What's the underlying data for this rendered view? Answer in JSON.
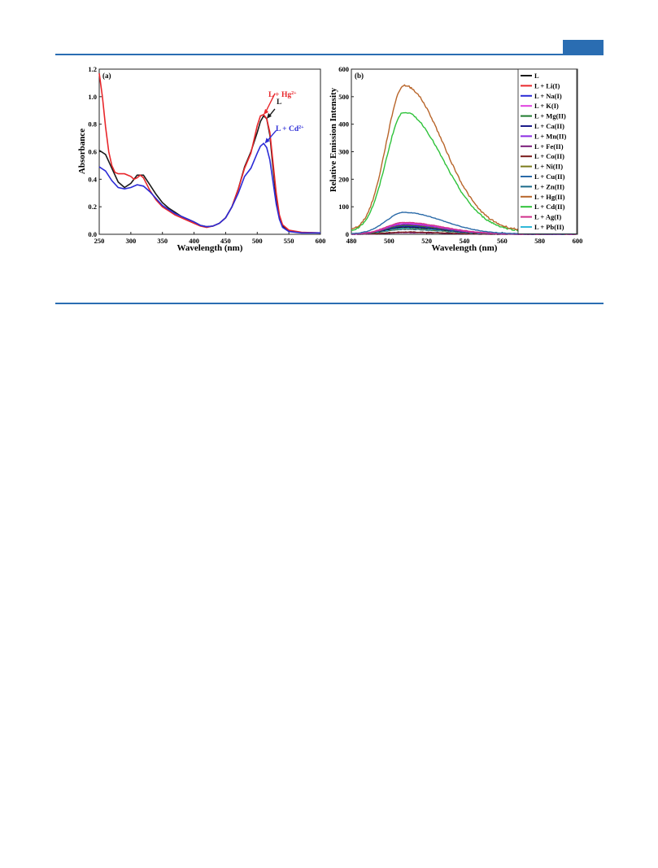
{
  "chart_data": [
    {
      "type": "line",
      "panel_label": "(a)",
      "xlabel": "Wavelength (nm)",
      "ylabel": "Absorbance",
      "xlim": [
        250,
        600
      ],
      "ylim": [
        0.0,
        1.2
      ],
      "xticks": [
        250,
        300,
        350,
        400,
        450,
        500,
        550,
        600
      ],
      "yticks": [
        0.0,
        0.2,
        0.4,
        0.6,
        0.8,
        1.0,
        1.2
      ],
      "ytick_labels": [
        "0.0",
        "0.2",
        "0.4",
        "0.6",
        "0.8",
        "1.0",
        "1.2"
      ],
      "grid": false,
      "series": [
        {
          "name": "L",
          "color": "#1a1a1a",
          "points": [
            [
              250,
              0.61
            ],
            [
              260,
              0.58
            ],
            [
              270,
              0.48
            ],
            [
              280,
              0.38
            ],
            [
              290,
              0.34
            ],
            [
              300,
              0.37
            ],
            [
              310,
              0.43
            ],
            [
              320,
              0.43
            ],
            [
              330,
              0.36
            ],
            [
              340,
              0.29
            ],
            [
              350,
              0.23
            ],
            [
              360,
              0.19
            ],
            [
              370,
              0.16
            ],
            [
              380,
              0.13
            ],
            [
              390,
              0.11
            ],
            [
              400,
              0.09
            ],
            [
              410,
              0.065
            ],
            [
              420,
              0.055
            ],
            [
              430,
              0.06
            ],
            [
              440,
              0.08
            ],
            [
              450,
              0.12
            ],
            [
              460,
              0.2
            ],
            [
              470,
              0.33
            ],
            [
              480,
              0.49
            ],
            [
              490,
              0.6
            ],
            [
              500,
              0.74
            ],
            [
              505,
              0.82
            ],
            [
              510,
              0.86
            ],
            [
              515,
              0.84
            ],
            [
              520,
              0.72
            ],
            [
              525,
              0.48
            ],
            [
              530,
              0.26
            ],
            [
              535,
              0.12
            ],
            [
              540,
              0.06
            ],
            [
              550,
              0.025
            ],
            [
              570,
              0.012
            ],
            [
              600,
              0.01
            ]
          ]
        },
        {
          "name": "L + Hg",
          "color": "#e8272b",
          "points": [
            [
              250,
              1.17
            ],
            [
              255,
              1.0
            ],
            [
              260,
              0.78
            ],
            [
              265,
              0.6
            ],
            [
              270,
              0.5
            ],
            [
              275,
              0.45
            ],
            [
              280,
              0.44
            ],
            [
              290,
              0.44
            ],
            [
              300,
              0.42
            ],
            [
              305,
              0.4
            ],
            [
              310,
              0.41
            ],
            [
              315,
              0.43
            ],
            [
              320,
              0.41
            ],
            [
              330,
              0.32
            ],
            [
              340,
              0.25
            ],
            [
              350,
              0.2
            ],
            [
              360,
              0.17
            ],
            [
              370,
              0.14
            ],
            [
              380,
              0.12
            ],
            [
              390,
              0.1
            ],
            [
              400,
              0.08
            ],
            [
              410,
              0.06
            ],
            [
              420,
              0.05
            ],
            [
              430,
              0.06
            ],
            [
              440,
              0.08
            ],
            [
              450,
              0.12
            ],
            [
              460,
              0.2
            ],
            [
              470,
              0.33
            ],
            [
              480,
              0.48
            ],
            [
              490,
              0.59
            ],
            [
              500,
              0.79
            ],
            [
              505,
              0.86
            ],
            [
              510,
              0.87
            ],
            [
              515,
              0.84
            ],
            [
              520,
              0.74
            ],
            [
              525,
              0.52
            ],
            [
              530,
              0.3
            ],
            [
              535,
              0.14
            ],
            [
              540,
              0.07
            ],
            [
              550,
              0.03
            ],
            [
              570,
              0.015
            ],
            [
              600,
              0.01
            ]
          ]
        },
        {
          "name": "L + Cd",
          "color": "#2b2bd6",
          "points": [
            [
              250,
              0.49
            ],
            [
              260,
              0.46
            ],
            [
              270,
              0.39
            ],
            [
              280,
              0.34
            ],
            [
              290,
              0.33
            ],
            [
              300,
              0.34
            ],
            [
              310,
              0.36
            ],
            [
              320,
              0.35
            ],
            [
              330,
              0.31
            ],
            [
              340,
              0.26
            ],
            [
              350,
              0.21
            ],
            [
              360,
              0.18
            ],
            [
              370,
              0.15
            ],
            [
              380,
              0.13
            ],
            [
              390,
              0.11
            ],
            [
              400,
              0.09
            ],
            [
              410,
              0.065
            ],
            [
              420,
              0.055
            ],
            [
              430,
              0.06
            ],
            [
              440,
              0.08
            ],
            [
              450,
              0.12
            ],
            [
              460,
              0.2
            ],
            [
              470,
              0.3
            ],
            [
              480,
              0.42
            ],
            [
              490,
              0.48
            ],
            [
              500,
              0.59
            ],
            [
              505,
              0.64
            ],
            [
              510,
              0.66
            ],
            [
              515,
              0.63
            ],
            [
              520,
              0.54
            ],
            [
              525,
              0.38
            ],
            [
              530,
              0.22
            ],
            [
              535,
              0.11
            ],
            [
              540,
              0.05
            ],
            [
              550,
              0.02
            ],
            [
              570,
              0.01
            ],
            [
              600,
              0.01
            ]
          ]
        }
      ],
      "annotations": [
        {
          "text": "L + Hg",
          "sup": "2+",
          "color": "#e8272b",
          "at_x": 510,
          "at_y": 0.87
        },
        {
          "text": "L",
          "sup": "",
          "color": "#1a1a1a",
          "at_x": 515,
          "at_y": 0.84
        },
        {
          "text": "L + Cd",
          "sup": "2+",
          "color": "#2b2bd6",
          "at_x": 512,
          "at_y": 0.66
        }
      ]
    },
    {
      "type": "line",
      "panel_label": "(b)",
      "xlabel": "Wavelength (nm)",
      "ylabel": "Relative Emission Intensity",
      "xlim": [
        480,
        600
      ],
      "ylim": [
        0,
        600
      ],
      "xticks": [
        480,
        500,
        520,
        540,
        560,
        580,
        600
      ],
      "yticks": [
        0,
        100,
        200,
        300,
        400,
        500,
        600
      ],
      "grid": false,
      "legend_position": "top-right",
      "series": [
        {
          "name": "L",
          "color": "#1a1a1a",
          "peak": 25
        },
        {
          "name": "L + Li(I)",
          "color": "#e8272b",
          "peak": 35
        },
        {
          "name": "L + Na(I)",
          "color": "#2b2bd6",
          "peak": 30
        },
        {
          "name": "L + K(I)",
          "color": "#e040e0",
          "peak": 40
        },
        {
          "name": "L + Mg(II)",
          "color": "#1e7a2e",
          "peak": 32
        },
        {
          "name": "L + Ca(II)",
          "color": "#1c1c8a",
          "peak": 28
        },
        {
          "name": "L + Mn(II)",
          "color": "#8a2be2",
          "peak": 36
        },
        {
          "name": "L + Fe(II)",
          "color": "#7a1a7a",
          "peak": 6
        },
        {
          "name": "L + Co(II)",
          "color": "#7a1a1a",
          "peak": 8
        },
        {
          "name": "L + Ni(II)",
          "color": "#7a7a1a",
          "peak": 20
        },
        {
          "name": "L + Cu(II)",
          "color": "#2a6aa8",
          "peak": 78
        },
        {
          "name": "L + Zn(II)",
          "color": "#1a6a8a",
          "peak": 18
        },
        {
          "name": "L + Hg(II)",
          "color": "#b8652a",
          "peak": 530
        },
        {
          "name": "L + Cd(II)",
          "color": "#2ec23a",
          "peak": 435
        },
        {
          "name": "L + Ag(I)",
          "color": "#d0308a",
          "peak": 42
        },
        {
          "name": "L + Pb(II)",
          "color": "#30b8d8",
          "peak": 22
        }
      ]
    }
  ]
}
